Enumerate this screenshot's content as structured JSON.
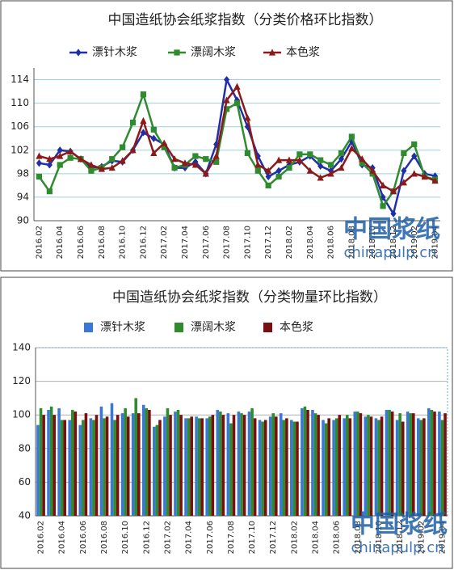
{
  "chart_data": [
    {
      "type": "line",
      "title": "中国造纸协会纸浆指数（分类价格环比指数）",
      "categories": [
        "2016.02",
        null,
        "2016.04",
        null,
        "2016.06",
        null,
        "2016.08",
        null,
        "2016.10",
        null,
        "2016.12",
        null,
        "2017.02",
        null,
        "2017.04",
        null,
        "2017.06",
        null,
        "2017.08",
        null,
        "2017.10",
        null,
        "2017.12",
        null,
        "2018.02",
        null,
        "2018.04",
        null,
        "2018.06",
        null,
        "2018.08",
        null,
        "2018.10",
        null,
        "2018.12",
        null,
        "2019.02",
        null,
        "2019.04"
      ],
      "series": [
        {
          "name": "漂针木浆",
          "color": "#1f2fa8",
          "marker": "diamond",
          "values": [
            99.8,
            99.5,
            102,
            101.8,
            100.5,
            99,
            99.2,
            100.2,
            100,
            102,
            105,
            104,
            103,
            99,
            99,
            100,
            98,
            103,
            114,
            110.5,
            106,
            101,
            97.5,
            98.5,
            99.5,
            100,
            101,
            99.3,
            98.5,
            100.5,
            103.5,
            99.5,
            99,
            94,
            91.2,
            98.5,
            101,
            98,
            97.6
          ]
        },
        {
          "name": "漂阔木浆",
          "color": "#2e8b2e",
          "marker": "square",
          "values": [
            97.5,
            95,
            99.5,
            100.7,
            100.5,
            98.5,
            99,
            100.5,
            102.5,
            106.7,
            111.5,
            105.5,
            102.5,
            99,
            99.5,
            101,
            100.5,
            100,
            109,
            110,
            101.5,
            98.5,
            96,
            97.5,
            99,
            101.3,
            101.3,
            100.3,
            99.5,
            101.5,
            104.3,
            99.8,
            98,
            92.5,
            95,
            101.5,
            103,
            97.5,
            97
          ]
        },
        {
          "name": "本色浆",
          "color": "#8b1a1a",
          "marker": "triangle",
          "values": [
            101,
            100.5,
            101,
            101.8,
            100.5,
            99.5,
            98.8,
            99,
            100.2,
            102,
            107,
            101.5,
            103.2,
            100.5,
            99.8,
            99.5,
            98,
            101,
            110.5,
            112.8,
            107.5,
            99.5,
            98.5,
            100.3,
            100.3,
            100.3,
            98.5,
            97.3,
            98,
            99,
            102.3,
            100.5,
            98.5,
            96,
            95,
            96.5,
            98,
            97.5,
            96.8
          ]
        }
      ],
      "ylim": [
        90,
        116
      ],
      "yticks": [
        90,
        94,
        98,
        102,
        106,
        110,
        114
      ],
      "grid": true,
      "watermark": "中国浆纸",
      "watermark_url": "chinapulp.cn"
    },
    {
      "type": "bar",
      "title": "中国造纸协会纸浆指数（分类物量环比指数）",
      "categories": [
        "2016.02",
        null,
        "2016.04",
        null,
        "2016.06",
        null,
        "2016.08",
        null,
        "2016.10",
        null,
        "2016.12",
        null,
        "2017.02",
        null,
        "2017.04",
        null,
        "2017.06",
        null,
        "2017.08",
        null,
        "2017.10",
        null,
        "2017.12",
        null,
        "2018.02",
        null,
        "2018.04",
        null,
        "2018.06",
        null,
        "2018.08",
        null,
        "2018.10",
        null,
        "2018.12",
        null,
        "2019.02",
        null,
        "2019.04"
      ],
      "series": [
        {
          "name": "漂针木浆",
          "color": "#3a78d8",
          "values": [
            94,
            103,
            104,
            97,
            94,
            98,
            105,
            107,
            101,
            101,
            106,
            93,
            99,
            102,
            98,
            99,
            98,
            103,
            101,
            102,
            102,
            97,
            99,
            101,
            97,
            104,
            103,
            97,
            97,
            98,
            102,
            99,
            98,
            103,
            97,
            102,
            98,
            104,
            102
          ]
        },
        {
          "name": "漂阔木浆",
          "color": "#2e8b2e",
          "values": [
            104,
            105,
            97,
            103,
            97,
            97,
            98,
            97,
            104,
            110,
            104,
            94,
            104,
            103,
            98,
            98,
            99,
            102,
            95,
            101,
            104,
            96,
            101,
            97,
            96,
            105,
            101,
            95,
            98,
            100,
            102,
            100,
            97,
            103,
            101,
            101,
            97,
            103,
            97
          ]
        },
        {
          "name": "本色浆",
          "color": "#7a0f0f",
          "values": [
            100,
            100,
            97,
            102,
            101,
            100,
            99,
            100,
            99,
            101,
            103,
            97,
            100,
            100,
            99,
            98,
            100,
            100,
            100,
            100,
            98,
            97,
            99,
            98,
            96,
            103,
            100,
            98,
            100,
            98,
            101,
            99,
            99,
            102,
            96,
            101,
            98,
            102,
            101
          ]
        }
      ],
      "ylim": [
        40,
        140
      ],
      "yticks": [
        40,
        60,
        80,
        100,
        120,
        140
      ],
      "grid": true,
      "watermark": "中国浆纸",
      "watermark_url": "chinapulp.cn"
    }
  ]
}
